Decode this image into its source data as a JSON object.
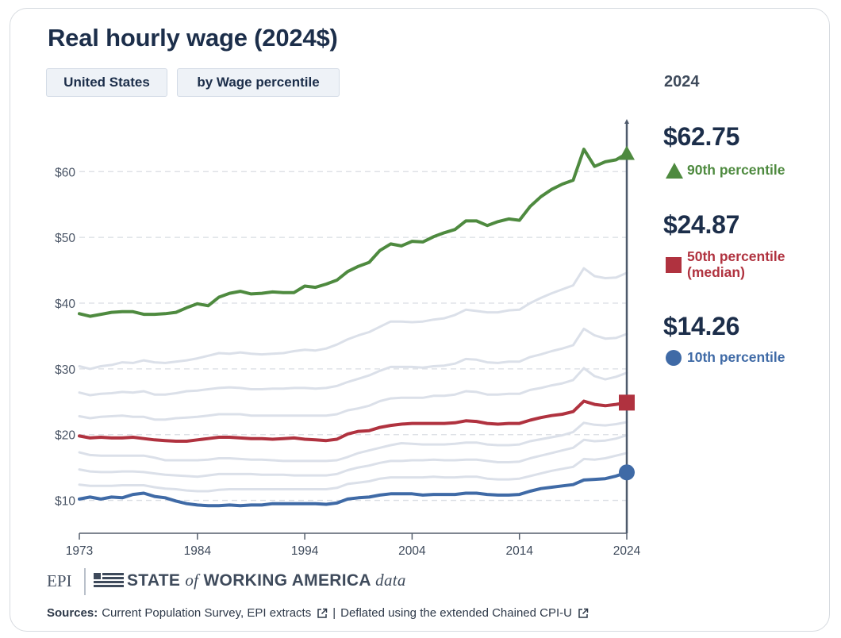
{
  "title": "Real hourly wage (2024$)",
  "filters": {
    "region": "United States",
    "breakdown": "by Wage percentile"
  },
  "readout": {
    "year": "2024",
    "items": [
      {
        "value": "$62.75",
        "label": "90th percentile",
        "label2": "",
        "color": "#4e8a3f",
        "marker": "triangle"
      },
      {
        "value": "$24.87",
        "label": "50th percentile",
        "label2": "(median)",
        "color": "#b0323f",
        "marker": "square"
      },
      {
        "value": "$14.26",
        "label": "10th percentile",
        "label2": "",
        "color": "#3f6aa6",
        "marker": "circle"
      }
    ]
  },
  "footer": {
    "epi": "EPI",
    "brand_a": "STATE",
    "brand_of": "of",
    "brand_b": "WORKING AMERICA",
    "brand_data": "data",
    "sources_label": "Sources:",
    "source1": "Current Population Survey, EPI extracts",
    "separator": "|",
    "source2": "Deflated using the extended Chained CPI-U",
    "ext_icon": "external-link-icon"
  },
  "chart_data": {
    "type": "line",
    "x_start": 1973,
    "x_end": 2024,
    "xticks": [
      1973,
      1984,
      1994,
      2004,
      2014,
      2024
    ],
    "xtick_labels": [
      "1973",
      "1984",
      "1994",
      "2004",
      "2014",
      "2024"
    ],
    "yticks": [
      10,
      20,
      30,
      40,
      50,
      60
    ],
    "ytick_labels": [
      "$10",
      "$20",
      "$30",
      "$40",
      "$50",
      "$60"
    ],
    "ylim": [
      5,
      68
    ],
    "grid": "horizontal dashed",
    "highlight_year": 2024,
    "series": [
      {
        "name": "90th percentile",
        "highlight": true,
        "color": "#4e8a3f",
        "values": [
          38.4,
          38.0,
          38.3,
          38.6,
          38.7,
          38.7,
          38.3,
          38.3,
          38.4,
          38.6,
          39.3,
          39.9,
          39.6,
          40.9,
          41.5,
          41.8,
          41.4,
          41.5,
          41.7,
          41.6,
          41.6,
          42.6,
          42.4,
          42.9,
          43.5,
          44.8,
          45.6,
          46.2,
          48.0,
          49.0,
          48.7,
          49.4,
          49.3,
          50.1,
          50.7,
          51.2,
          52.5,
          52.5,
          51.8,
          52.4,
          52.8,
          52.6,
          54.7,
          56.2,
          57.3,
          58.1,
          58.7,
          63.4,
          60.8,
          61.5,
          61.8,
          62.75
        ]
      },
      {
        "name": "",
        "highlight": false,
        "color": "#dbe0e9",
        "values": [
          30.4,
          30.0,
          30.4,
          30.6,
          31.0,
          30.9,
          31.3,
          31.0,
          30.9,
          31.1,
          31.3,
          31.6,
          32.0,
          32.4,
          32.3,
          32.5,
          32.3,
          32.2,
          32.3,
          32.4,
          32.7,
          32.9,
          32.8,
          33.1,
          33.7,
          34.5,
          35.1,
          35.6,
          36.4,
          37.2,
          37.2,
          37.1,
          37.2,
          37.5,
          37.7,
          38.2,
          39.0,
          38.8,
          38.6,
          38.6,
          38.9,
          39.0,
          40.0,
          40.8,
          41.5,
          42.1,
          42.7,
          45.3,
          44.1,
          43.8,
          43.9,
          44.6
        ]
      },
      {
        "name": "",
        "highlight": false,
        "color": "#dbe0e9",
        "values": [
          26.4,
          26.0,
          26.2,
          26.3,
          26.5,
          26.4,
          26.6,
          26.1,
          26.1,
          26.3,
          26.6,
          26.7,
          26.9,
          27.1,
          27.2,
          27.1,
          26.9,
          26.9,
          27.0,
          27.0,
          27.1,
          27.1,
          27.0,
          27.1,
          27.4,
          28.0,
          28.5,
          29.0,
          29.7,
          30.3,
          30.3,
          30.3,
          30.2,
          30.4,
          30.5,
          30.8,
          31.5,
          31.4,
          31.0,
          30.9,
          31.1,
          31.1,
          31.8,
          32.2,
          32.7,
          33.1,
          33.6,
          36.1,
          35.1,
          34.6,
          34.7,
          35.3
        ]
      },
      {
        "name": "",
        "highlight": false,
        "color": "#dbe0e9",
        "values": [
          22.8,
          22.5,
          22.7,
          22.8,
          22.9,
          22.7,
          22.7,
          22.3,
          22.3,
          22.5,
          22.6,
          22.7,
          22.9,
          23.1,
          23.1,
          23.1,
          22.9,
          22.9,
          22.9,
          22.9,
          22.9,
          22.9,
          22.9,
          22.9,
          23.1,
          23.7,
          24.0,
          24.4,
          25.1,
          25.5,
          25.6,
          25.6,
          25.6,
          25.9,
          25.9,
          26.1,
          26.6,
          26.5,
          26.1,
          26.1,
          26.2,
          26.2,
          26.8,
          27.1,
          27.5,
          27.8,
          28.3,
          30.1,
          28.9,
          28.4,
          28.8,
          29.4
        ]
      },
      {
        "name": "50th percentile (median)",
        "highlight": true,
        "color": "#b0323f",
        "values": [
          19.8,
          19.5,
          19.6,
          19.5,
          19.5,
          19.6,
          19.4,
          19.2,
          19.1,
          19.0,
          19.0,
          19.2,
          19.4,
          19.6,
          19.6,
          19.5,
          19.4,
          19.4,
          19.3,
          19.4,
          19.5,
          19.3,
          19.2,
          19.1,
          19.3,
          20.1,
          20.5,
          20.6,
          21.1,
          21.4,
          21.6,
          21.7,
          21.7,
          21.7,
          21.7,
          21.8,
          22.1,
          22.0,
          21.7,
          21.6,
          21.7,
          21.7,
          22.2,
          22.6,
          22.9,
          23.1,
          23.5,
          25.1,
          24.6,
          24.4,
          24.6,
          24.87
        ]
      },
      {
        "name": "",
        "highlight": false,
        "color": "#dbe0e9",
        "values": [
          17.3,
          16.9,
          16.8,
          16.8,
          16.8,
          16.8,
          16.8,
          16.5,
          16.1,
          16.1,
          16.1,
          16.1,
          16.2,
          16.4,
          16.4,
          16.3,
          16.2,
          16.2,
          16.1,
          16.0,
          16.0,
          16.0,
          16.0,
          16.0,
          16.1,
          16.6,
          17.2,
          17.6,
          18.0,
          18.4,
          18.7,
          18.6,
          18.5,
          18.5,
          18.5,
          18.6,
          18.8,
          18.8,
          18.5,
          18.4,
          18.4,
          18.5,
          19.0,
          19.3,
          19.6,
          19.9,
          20.4,
          21.8,
          21.5,
          21.4,
          21.6,
          21.9
        ]
      },
      {
        "name": "",
        "highlight": false,
        "color": "#dbe0e9",
        "values": [
          14.7,
          14.4,
          14.3,
          14.3,
          14.4,
          14.4,
          14.3,
          14.1,
          13.9,
          13.8,
          13.7,
          13.6,
          13.8,
          14.0,
          14.0,
          14.0,
          14.0,
          13.9,
          13.9,
          13.9,
          13.8,
          13.8,
          13.8,
          13.8,
          14.0,
          14.6,
          15.0,
          15.3,
          15.7,
          16.0,
          16.0,
          16.1,
          16.1,
          16.2,
          16.1,
          16.1,
          16.2,
          16.2,
          16.0,
          15.8,
          15.8,
          15.9,
          16.4,
          16.8,
          17.2,
          17.6,
          18.0,
          19.2,
          19.0,
          19.1,
          19.4,
          19.9
        ]
      },
      {
        "name": "",
        "highlight": false,
        "color": "#dbe0e9",
        "values": [
          12.4,
          12.2,
          12.2,
          12.2,
          12.3,
          12.3,
          12.3,
          12.0,
          11.8,
          11.7,
          11.5,
          11.4,
          11.4,
          11.6,
          11.7,
          11.7,
          11.7,
          11.7,
          11.7,
          11.7,
          11.7,
          11.7,
          11.7,
          11.7,
          11.9,
          12.5,
          12.7,
          12.9,
          13.3,
          13.5,
          13.5,
          13.5,
          13.5,
          13.6,
          13.5,
          13.5,
          13.6,
          13.6,
          13.3,
          13.2,
          13.2,
          13.3,
          13.7,
          14.1,
          14.5,
          14.8,
          15.1,
          16.3,
          16.2,
          16.4,
          16.8,
          17.2
        ]
      },
      {
        "name": "10th percentile",
        "highlight": true,
        "color": "#3f6aa6",
        "values": [
          10.2,
          10.5,
          10.2,
          10.5,
          10.4,
          10.9,
          11.1,
          10.6,
          10.4,
          9.9,
          9.5,
          9.3,
          9.2,
          9.2,
          9.3,
          9.2,
          9.3,
          9.3,
          9.5,
          9.5,
          9.5,
          9.5,
          9.5,
          9.4,
          9.6,
          10.2,
          10.4,
          10.5,
          10.8,
          11.0,
          11.0,
          11.0,
          10.8,
          10.9,
          10.9,
          10.9,
          11.1,
          11.1,
          10.9,
          10.8,
          10.8,
          10.9,
          11.4,
          11.8,
          12.0,
          12.2,
          12.4,
          13.1,
          13.2,
          13.3,
          13.7,
          14.26
        ]
      }
    ]
  }
}
